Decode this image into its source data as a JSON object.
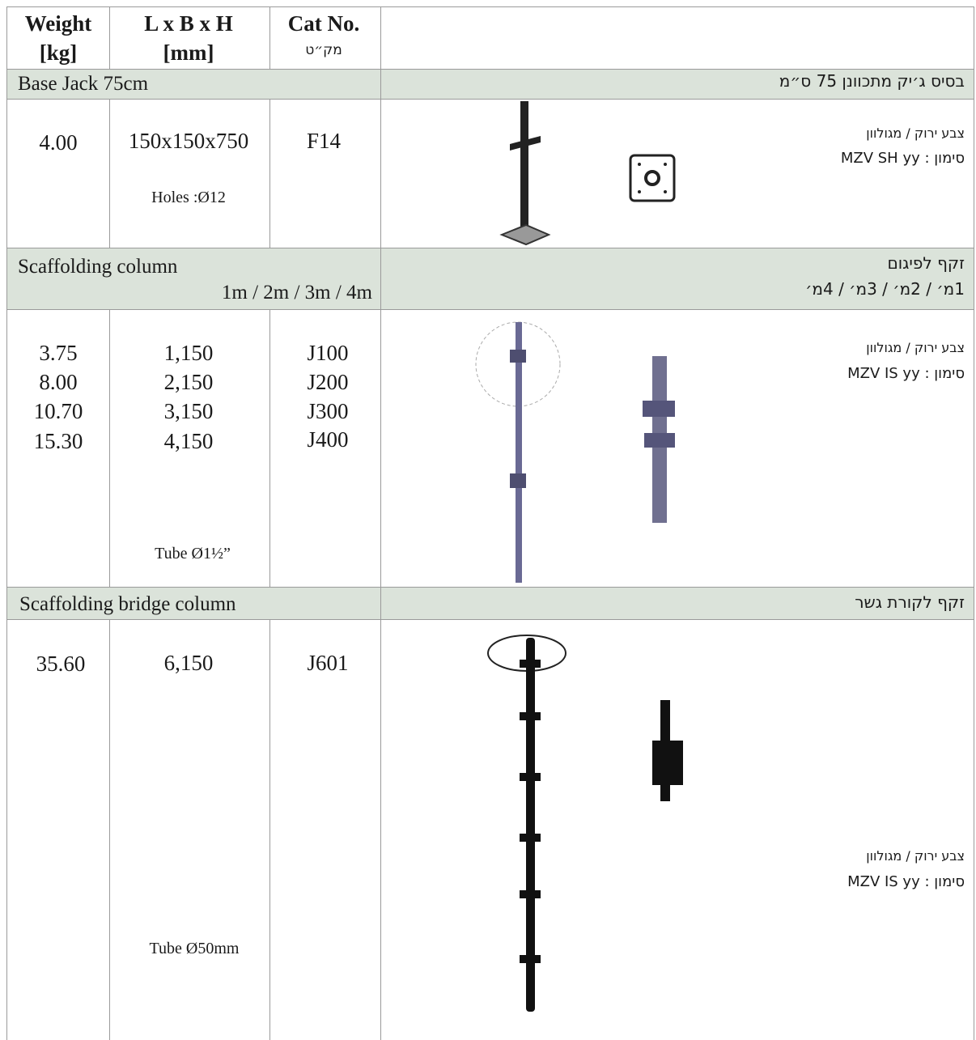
{
  "header": {
    "weight": [
      "Weight",
      "[kg]"
    ],
    "dimensions": [
      "L x B x H",
      "[mm]"
    ],
    "cat_no": [
      "Cat No.",
      "מק״ט"
    ]
  },
  "sections": [
    {
      "title_en": [
        "Base Jack 75cm"
      ],
      "title_he": [
        "בסיס ג׳יק מתכוונן 75 ס״מ"
      ],
      "weights": [
        "4.00"
      ],
      "dimensions": [
        "150x150x750"
      ],
      "cat_nos": [
        "F14"
      ],
      "note": "Holes :Ø12",
      "finish": "צבע ירוק / מגולוון",
      "marking": "סימון : MZV SH yy"
    },
    {
      "title_en": [
        "Scaffolding column",
        "1m / 2m / 3m / 4m"
      ],
      "title_he": [
        "זקף לפיגום",
        "1מ׳ / 2מ׳ / 3מ׳ / 4מ׳"
      ],
      "weights": [
        "3.75",
        "8.00",
        "10.70",
        "15.30"
      ],
      "dimensions": [
        "1,150",
        "2,150",
        "3,150",
        "4,150"
      ],
      "cat_nos": [
        "J100",
        "J200",
        "J300",
        "J400"
      ],
      "note": "Tube Ø1½”",
      "finish": "צבע ירוק / מגולוון",
      "marking": "סימון : MZV IS yy"
    },
    {
      "title_en": [
        "Scaffolding bridge column"
      ],
      "title_he": [
        "זקף לקורת גשר"
      ],
      "weights": [
        "35.60"
      ],
      "dimensions": [
        "6,150"
      ],
      "cat_nos": [
        "J601"
      ],
      "note": "Tube Ø50mm",
      "finish": "צבע ירוק / מגולוון",
      "marking": "סימון : MZV IS yy"
    }
  ]
}
